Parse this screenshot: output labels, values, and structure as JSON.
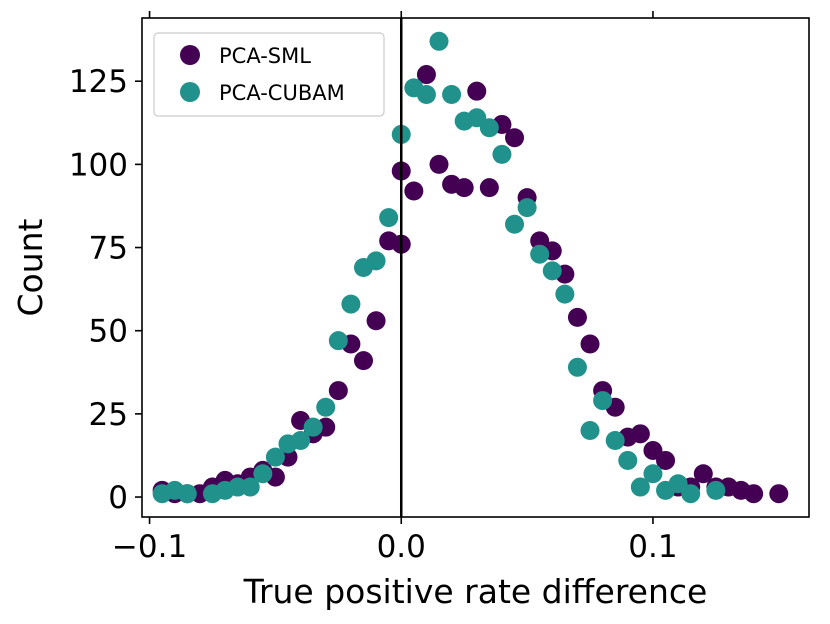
{
  "chart_data": {
    "type": "scatter",
    "title": "",
    "xlabel": "True positive rate difference",
    "ylabel": "Count",
    "xlim": [
      -0.103,
      0.162
    ],
    "ylim": [
      -6,
      144
    ],
    "xticks": [
      {
        "value": -0.1,
        "label": "−0.1"
      },
      {
        "value": 0.0,
        "label": "0.0"
      },
      {
        "value": 0.1,
        "label": "0.1"
      }
    ],
    "yticks": [
      {
        "value": 0,
        "label": "0"
      },
      {
        "value": 25,
        "label": "25"
      },
      {
        "value": 50,
        "label": "50"
      },
      {
        "value": 75,
        "label": "75"
      },
      {
        "value": 100,
        "label": "100"
      },
      {
        "value": 125,
        "label": "125"
      }
    ],
    "vline": 0.0,
    "legend_position": "top-left",
    "series": [
      {
        "name": "PCA-SML",
        "color": "#440154",
        "points": [
          [
            -0.095,
            2
          ],
          [
            -0.09,
            1
          ],
          [
            -0.085,
            1
          ],
          [
            -0.08,
            1
          ],
          [
            -0.075,
            3
          ],
          [
            -0.07,
            5
          ],
          [
            -0.065,
            4
          ],
          [
            -0.06,
            6
          ],
          [
            -0.055,
            8
          ],
          [
            -0.05,
            6
          ],
          [
            -0.045,
            12
          ],
          [
            -0.04,
            23
          ],
          [
            -0.035,
            19
          ],
          [
            -0.03,
            21
          ],
          [
            -0.025,
            32
          ],
          [
            -0.02,
            46
          ],
          [
            -0.015,
            41
          ],
          [
            -0.01,
            53
          ],
          [
            -0.005,
            77
          ],
          [
            0.0,
            76
          ],
          [
            0.0,
            98
          ],
          [
            0.005,
            92
          ],
          [
            0.01,
            127
          ],
          [
            0.015,
            100
          ],
          [
            0.02,
            94
          ],
          [
            0.025,
            93
          ],
          [
            0.03,
            122
          ],
          [
            0.035,
            93
          ],
          [
            0.04,
            112
          ],
          [
            0.045,
            108
          ],
          [
            0.05,
            90
          ],
          [
            0.055,
            77
          ],
          [
            0.06,
            74
          ],
          [
            0.065,
            67
          ],
          [
            0.07,
            54
          ],
          [
            0.075,
            46
          ],
          [
            0.08,
            32
          ],
          [
            0.085,
            27
          ],
          [
            0.09,
            18
          ],
          [
            0.095,
            19
          ],
          [
            0.1,
            14
          ],
          [
            0.105,
            11
          ],
          [
            0.11,
            3
          ],
          [
            0.115,
            3
          ],
          [
            0.12,
            7
          ],
          [
            0.125,
            3
          ],
          [
            0.13,
            3
          ],
          [
            0.135,
            2
          ],
          [
            0.14,
            1
          ],
          [
            0.15,
            1
          ]
        ]
      },
      {
        "name": "PCA-CUBAM",
        "color": "#21918c",
        "points": [
          [
            -0.095,
            1
          ],
          [
            -0.09,
            2
          ],
          [
            -0.085,
            1
          ],
          [
            -0.075,
            1
          ],
          [
            -0.07,
            2
          ],
          [
            -0.065,
            3
          ],
          [
            -0.06,
            3
          ],
          [
            -0.055,
            7
          ],
          [
            -0.05,
            12
          ],
          [
            -0.045,
            16
          ],
          [
            -0.04,
            17
          ],
          [
            -0.035,
            21
          ],
          [
            -0.03,
            27
          ],
          [
            -0.025,
            47
          ],
          [
            -0.02,
            58
          ],
          [
            -0.015,
            69
          ],
          [
            -0.01,
            71
          ],
          [
            -0.005,
            84
          ],
          [
            0.0,
            109
          ],
          [
            0.005,
            123
          ],
          [
            0.01,
            121
          ],
          [
            0.015,
            137
          ],
          [
            0.02,
            121
          ],
          [
            0.025,
            113
          ],
          [
            0.03,
            114
          ],
          [
            0.035,
            111
          ],
          [
            0.04,
            103
          ],
          [
            0.045,
            82
          ],
          [
            0.05,
            87
          ],
          [
            0.055,
            73
          ],
          [
            0.06,
            68
          ],
          [
            0.065,
            61
          ],
          [
            0.07,
            39
          ],
          [
            0.075,
            20
          ],
          [
            0.08,
            29
          ],
          [
            0.085,
            17
          ],
          [
            0.09,
            11
          ],
          [
            0.095,
            3
          ],
          [
            0.1,
            7
          ],
          [
            0.105,
            2
          ],
          [
            0.11,
            4
          ],
          [
            0.115,
            1
          ],
          [
            0.125,
            2
          ]
        ]
      }
    ]
  }
}
